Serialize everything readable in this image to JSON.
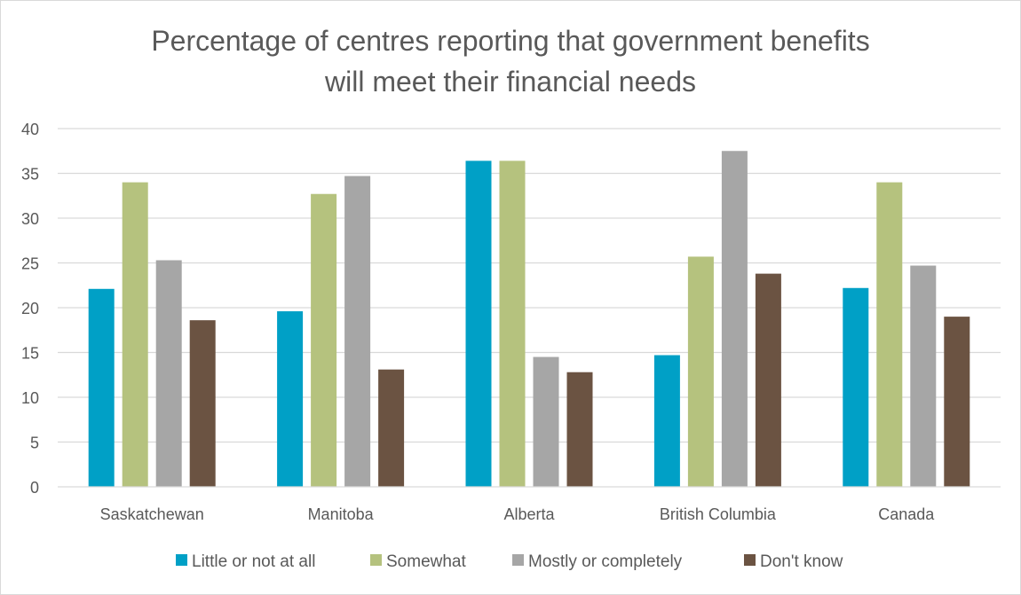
{
  "chart_data": {
    "type": "bar",
    "title": "Percentage of centres reporting that government benefits will meet their financial needs",
    "title_lines": [
      "Percentage of centres reporting that government benefits",
      "will meet their financial needs"
    ],
    "xlabel": "",
    "ylabel": "",
    "categories": [
      "Saskatchewan",
      "Manitoba",
      "Alberta",
      "British Columbia",
      "Canada"
    ],
    "series": [
      {
        "name": "Little or not at all",
        "color": "#00A0C6",
        "values": [
          22.1,
          19.6,
          36.4,
          14.7,
          22.2
        ]
      },
      {
        "name": "Somewhat",
        "color": "#B5C27E",
        "values": [
          34.0,
          32.7,
          36.4,
          25.7,
          34.0
        ]
      },
      {
        "name": "Mostly or completely",
        "color": "#A6A6A6",
        "values": [
          25.3,
          34.7,
          14.5,
          37.5,
          24.7
        ]
      },
      {
        "name": "Don't know",
        "color": "#6B5342",
        "values": [
          18.6,
          13.1,
          12.8,
          23.8,
          19.0
        ]
      }
    ],
    "ylim": [
      0,
      40
    ],
    "yticks": [
      "0",
      "5",
      "10",
      "15",
      "20",
      "25",
      "30",
      "35",
      "40"
    ],
    "grid": true,
    "legend_position": "bottom"
  }
}
